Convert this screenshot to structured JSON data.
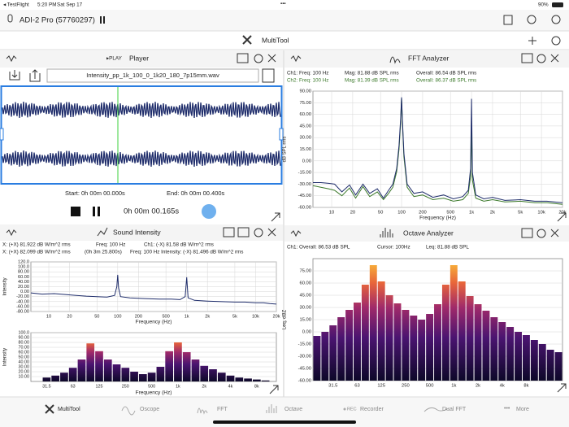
{
  "status_bar": {
    "left": "◂ TestFlight",
    "time": "5:20 PM",
    "date": "Sat Sep 17",
    "battery": "90%"
  },
  "top_bar": {
    "device": "ADI-2 Pro (57760297)"
  },
  "toolbar": {
    "title": "MultiTool"
  },
  "player": {
    "mode": "▸PLAY",
    "title": "Player",
    "file": "Intensity_pp_1k_100_0_1k20_180_7p15mm.wav",
    "start": "Start: 0h 00m 00.000s",
    "end": "End: 0h 00m 00.400s",
    "position": "0h 00m 00.165s"
  },
  "sound_intensity": {
    "title": "Sound Intensity",
    "info": [
      [
        "X: (+X) 81.922 dB W/m^2 rms",
        "Freq: 100 Hz",
        "Ch1: (-X) 81.58 dB W/m^2 rms"
      ],
      [
        "X: (+X) 82.099 dB W/m^2 rms",
        "(0h 3m 25.800s)",
        "Freq: 100 Hz  Intensity: (-X) 81.496 dB W/m^2 rms"
      ]
    ]
  },
  "fft": {
    "title": "FFT Analyzer",
    "info": [
      [
        "Ch1:  Freq: 100 Hz",
        "Mag: 81.88 dB SPL rms",
        "Overall: 86.54  dB SPL rms"
      ],
      [
        "Ch2:  Freq: 100 Hz",
        "Mag: 81.39 dB SPL rms",
        "Overall: 86.37  dB SPL rms"
      ]
    ]
  },
  "octave": {
    "title": "Octave Analyzer",
    "info": [
      "Ch1:  Overall: 86.53 dB SPL",
      "Cursor: 100Hz",
      "Leq: 81.88 dB SPL"
    ]
  },
  "tabs": [
    "MultiTool",
    "Oscope",
    "FFT",
    "Octave",
    "REC",
    "Recorder",
    "Dual FFT",
    "More"
  ],
  "chart_data": [
    {
      "type": "line",
      "log_x": true,
      "grid": true,
      "y_label": "Intensity",
      "x_label": "Frequency (Hz)",
      "xlim": [
        5.5,
        20000
      ],
      "ylim": [
        -80,
        120
      ],
      "xticks": [
        10,
        20,
        50,
        100,
        200,
        500,
        {
          "value": 1000,
          "label": "1k"
        },
        {
          "value": 2000,
          "label": "2k"
        },
        {
          "value": 5000,
          "label": "5k"
        },
        {
          "value": 10000,
          "label": "10k"
        },
        {
          "value": 20000,
          "label": "20k"
        }
      ],
      "yticks": [
        {
          "value": 120,
          "label": "120.0"
        },
        {
          "value": 100,
          "label": "100.0"
        },
        {
          "value": 80,
          "label": "80.00"
        },
        {
          "value": 60,
          "label": "60.00"
        },
        {
          "value": 40,
          "label": "40.00"
        },
        {
          "value": 20,
          "label": "20.00"
        },
        {
          "value": 0,
          "label": "0.00"
        },
        {
          "value": -20,
          "label": "-20.00"
        },
        {
          "value": -40,
          "label": "-40.00"
        },
        {
          "value": -60,
          "label": "-60.00"
        },
        {
          "value": -80,
          "label": "-80.00"
        }
      ],
      "x": [
        5.5,
        8,
        12,
        18,
        25,
        35,
        50,
        70,
        90,
        97,
        100,
        103,
        110,
        150,
        250,
        400,
        600,
        800,
        950,
        1000,
        1050,
        1300,
        2000,
        3000,
        5000,
        7000,
        10000,
        13000,
        16000,
        20000
      ],
      "series": [
        {
          "color": "#1f2d6b",
          "values": [
            -5,
            -10,
            -8,
            -12,
            -15,
            -18,
            -20,
            -22,
            -15,
            20,
            68,
            15,
            -20,
            -25,
            -28,
            -30,
            -30,
            -32,
            -20,
            58,
            -25,
            -35,
            -38,
            -40,
            -42,
            -42,
            -45,
            -45,
            -48,
            -50
          ]
        }
      ]
    },
    {
      "type": "bar",
      "grid": true,
      "y_label": "Intensity",
      "x_label": "Frequency (Hz)",
      "ylim": [
        0,
        100
      ],
      "yticks": [
        {
          "value": 100,
          "label": "100.0"
        },
        {
          "value": 90,
          "label": "90.00"
        },
        {
          "value": 80,
          "label": "80.00"
        },
        {
          "value": 70,
          "label": "70.00"
        },
        {
          "value": 60,
          "label": "60.00"
        },
        {
          "value": 50,
          "label": "50.00"
        },
        {
          "value": 40,
          "label": "40.00"
        },
        {
          "value": 30,
          "label": "30.00"
        },
        {
          "value": 20,
          "label": "20.00"
        },
        {
          "value": 10,
          "label": "10.00"
        }
      ],
      "categories": [
        "31.5",
        null,
        null,
        "63",
        null,
        null,
        "125",
        null,
        null,
        "250",
        null,
        null,
        "500",
        null,
        null,
        "1k",
        null,
        null,
        "2k",
        null,
        null,
        "4k",
        null,
        null,
        "8k",
        null
      ],
      "values": [
        8,
        12,
        18,
        28,
        45,
        78,
        62,
        45,
        35,
        28,
        20,
        15,
        18,
        30,
        62,
        80,
        60,
        45,
        32,
        25,
        18,
        12,
        8,
        6,
        4,
        2
      ]
    },
    {
      "type": "line",
      "log_x": true,
      "grid": true,
      "y_label": "dB SPL rms",
      "x_label": "Frequency (Hz)",
      "xlim": [
        5.4,
        20000
      ],
      "ylim": [
        -60,
        90
      ],
      "xticks": [
        10,
        20,
        50,
        100,
        200,
        500,
        {
          "value": 1000,
          "label": "1k"
        },
        {
          "value": 2000,
          "label": "2k"
        },
        {
          "value": 5000,
          "label": "5k"
        },
        {
          "value": 10000,
          "label": "10k"
        },
        {
          "value": 20000,
          "label": "20k"
        }
      ],
      "yticks": [
        {
          "value": 90,
          "label": "90.00"
        },
        {
          "value": 75,
          "label": "75.00"
        },
        {
          "value": 60,
          "label": "60.00"
        },
        {
          "value": 45,
          "label": "45.00"
        },
        {
          "value": 30,
          "label": "30.00"
        },
        {
          "value": 15,
          "label": "15.00"
        },
        {
          "value": 0,
          "label": "0.00"
        },
        {
          "value": -15,
          "label": "-15.00"
        },
        {
          "value": -30,
          "label": "-30.00"
        },
        {
          "value": -45,
          "label": "-45.00"
        },
        {
          "value": -60,
          "label": "-60.00"
        }
      ],
      "x": [
        5.4,
        7,
        9,
        11,
        14,
        18,
        22,
        28,
        35,
        45,
        55,
        65,
        75,
        85,
        92,
        97,
        100,
        103,
        108,
        120,
        150,
        200,
        280,
        400,
        550,
        750,
        900,
        970,
        1000,
        1030,
        1150,
        1500,
        2000,
        3000,
        5000,
        8000,
        12000,
        20000
      ],
      "series": [
        {
          "color": "#3d7a2c",
          "values": [
            -32,
            -34,
            -36,
            -38,
            -45,
            -35,
            -48,
            -33,
            -46,
            -40,
            -50,
            -42,
            -34,
            -14,
            15,
            50,
            81.39,
            46,
            5,
            -34,
            -46,
            -44,
            -50,
            -48,
            -52,
            -50,
            -42,
            -20,
            40,
            -25,
            -48,
            -52,
            -50,
            -53,
            -52,
            -54,
            -54,
            -56
          ]
        },
        {
          "color": "#1f2d6b",
          "values": [
            -28,
            -28,
            -29,
            -30,
            -40,
            -31,
            -44,
            -30,
            -42,
            -36,
            -48,
            -38,
            -30,
            -10,
            20,
            55,
            81.88,
            50,
            10,
            -30,
            -42,
            -40,
            -47,
            -44,
            -49,
            -46,
            -38,
            -10,
            80,
            -15,
            -44,
            -49,
            -47,
            -51,
            -50,
            -52,
            -52,
            -54
          ]
        }
      ]
    },
    {
      "type": "bar",
      "grid": true,
      "y_label": "Leq, dBZ",
      "ylim": [
        -60,
        90
      ],
      "yticks": [
        {
          "value": 75,
          "label": "75.00"
        },
        {
          "value": 60,
          "label": "60.00"
        },
        {
          "value": 45,
          "label": "45.00"
        },
        {
          "value": 30,
          "label": "30.00"
        },
        {
          "value": 15,
          "label": "15.00"
        },
        {
          "value": 0,
          "label": "0.00"
        },
        {
          "value": -15,
          "label": "-15.00"
        },
        {
          "value": -30,
          "label": "-30.00"
        },
        {
          "value": -45,
          "label": "-45.00"
        },
        {
          "value": -60,
          "label": "-60.00"
        }
      ],
      "categories": [
        null,
        null,
        "31.5",
        null,
        null,
        "63",
        null,
        null,
        "125",
        null,
        null,
        "250",
        null,
        null,
        "500",
        null,
        null,
        "1k",
        null,
        null,
        "2k",
        null,
        null,
        "4k",
        null,
        null,
        "8k",
        null,
        null,
        null,
        null
      ],
      "values": [
        -5,
        0,
        8,
        18,
        27,
        36,
        58,
        82,
        62,
        45,
        35,
        27,
        20,
        15,
        22,
        34,
        58,
        82,
        62,
        44,
        34,
        26,
        18,
        12,
        6,
        0,
        -4,
        -10,
        -15,
        -22,
        -25
      ]
    }
  ]
}
